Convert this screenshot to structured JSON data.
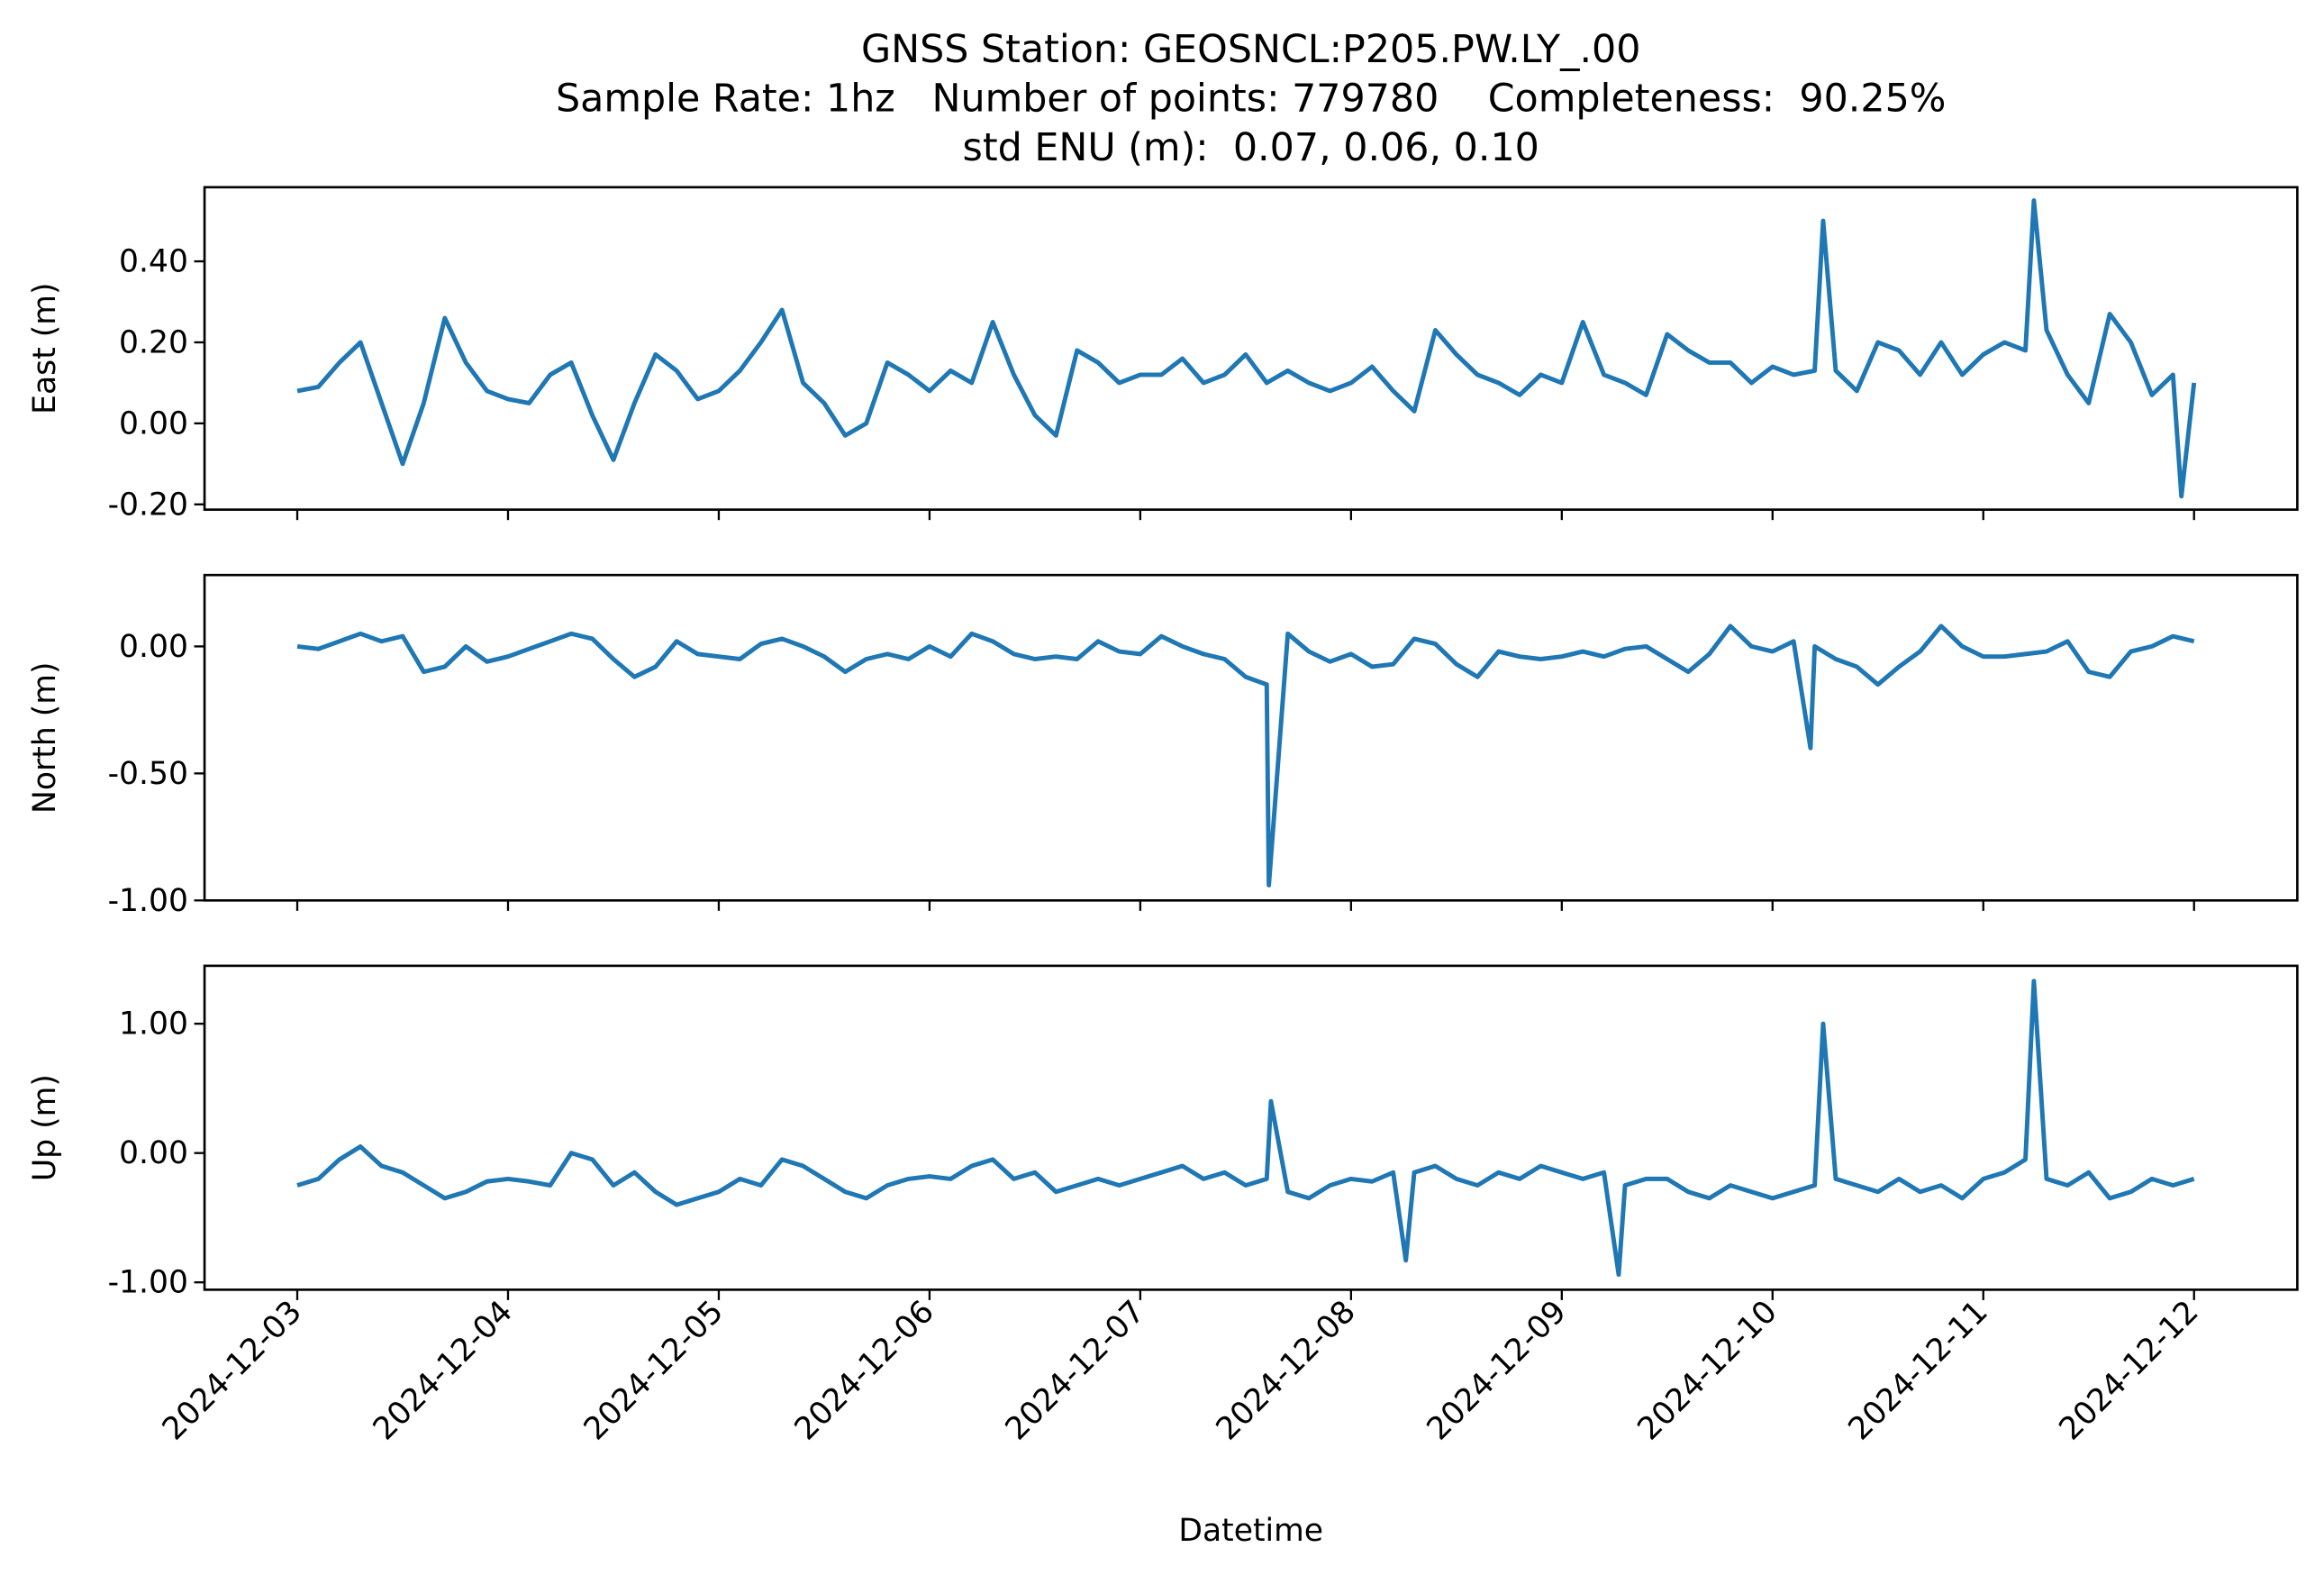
{
  "chart_data": [
    {
      "type": "line",
      "title": [
        "GNSS Station: GEOSNCL:P205.PW.LY_.00",
        "Sample Rate: 1hz   Number of points: 779780    Completeness:  90.25%",
        "std ENU (m):  0.07, 0.06, 0.10"
      ],
      "ylabel": "East (m)",
      "color": "#1f77b4",
      "x": [
        0,
        0.1,
        0.2,
        0.3,
        0.4,
        0.5,
        0.6,
        0.7,
        0.8,
        0.9,
        1,
        1.1,
        1.2,
        1.3,
        1.4,
        1.5,
        1.6,
        1.7,
        1.8,
        1.9,
        2,
        2.1,
        2.2,
        2.3,
        2.4,
        2.5,
        2.6,
        2.7,
        2.8,
        2.9,
        3,
        3.1,
        3.2,
        3.3,
        3.4,
        3.5,
        3.6,
        3.7,
        3.8,
        3.9,
        4,
        4.1,
        4.2,
        4.3,
        4.4,
        4.5,
        4.6,
        4.7,
        4.8,
        4.9,
        5,
        5.1,
        5.2,
        5.3,
        5.4,
        5.5,
        5.6,
        5.7,
        5.8,
        5.9,
        6,
        6.1,
        6.2,
        6.3,
        6.4,
        6.5,
        6.6,
        6.7,
        6.8,
        6.9,
        7,
        7.1,
        7.2,
        7.24,
        7.3,
        7.4,
        7.5,
        7.6,
        7.7,
        7.8,
        7.9,
        8,
        8.1,
        8.2,
        8.24,
        8.3,
        8.4,
        8.5,
        8.6,
        8.7,
        8.8,
        8.9,
        8.94,
        9
      ],
      "values": [
        0.08,
        0.09,
        0.15,
        0.2,
        0.05,
        -0.1,
        0.05,
        0.26,
        0.15,
        0.08,
        0.06,
        0.05,
        0.12,
        0.15,
        0.02,
        -0.09,
        0.05,
        0.17,
        0.13,
        0.06,
        0.08,
        0.13,
        0.2,
        0.28,
        0.1,
        0.05,
        -0.03,
        0.0,
        0.15,
        0.12,
        0.08,
        0.13,
        0.1,
        0.25,
        0.12,
        0.02,
        -0.03,
        0.18,
        0.15,
        0.1,
        0.12,
        0.12,
        0.16,
        0.1,
        0.12,
        0.17,
        0.1,
        0.13,
        0.1,
        0.08,
        0.1,
        0.14,
        0.08,
        0.03,
        0.23,
        0.17,
        0.12,
        0.1,
        0.07,
        0.12,
        0.1,
        0.25,
        0.12,
        0.1,
        0.07,
        0.22,
        0.18,
        0.15,
        0.15,
        0.1,
        0.14,
        0.12,
        0.13,
        0.5,
        0.13,
        0.08,
        0.2,
        0.18,
        0.12,
        0.2,
        0.12,
        0.17,
        0.2,
        0.18,
        0.55,
        0.23,
        0.12,
        0.05,
        0.27,
        0.2,
        0.07,
        0.12,
        -0.18,
        0.1
      ],
      "xlim": [
        -0.44,
        9.49
      ],
      "xticks": [
        0,
        1,
        2,
        3,
        4,
        5,
        6,
        7,
        8,
        9
      ],
      "ylim": [
        -0.213,
        0.583
      ],
      "yticks": [
        {
          "value": 0.4,
          "label": "0.40"
        },
        {
          "value": 0.2,
          "label": "0.20"
        },
        {
          "value": 0,
          "label": "0.00"
        },
        {
          "value": -0.2,
          "label": "-0.20"
        }
      ]
    },
    {
      "type": "line",
      "ylabel": "North (m)",
      "color": "#1f77b4",
      "x": [
        0,
        0.1,
        0.2,
        0.3,
        0.4,
        0.5,
        0.6,
        0.7,
        0.8,
        0.9,
        1,
        1.1,
        1.2,
        1.3,
        1.4,
        1.5,
        1.6,
        1.7,
        1.8,
        1.9,
        2,
        2.1,
        2.2,
        2.3,
        2.4,
        2.5,
        2.6,
        2.7,
        2.8,
        2.9,
        3,
        3.1,
        3.2,
        3.3,
        3.4,
        3.5,
        3.6,
        3.7,
        3.8,
        3.9,
        4,
        4.1,
        4.2,
        4.3,
        4.4,
        4.5,
        4.6,
        4.61,
        4.7,
        4.8,
        4.9,
        5,
        5.1,
        5.2,
        5.3,
        5.4,
        5.5,
        5.6,
        5.7,
        5.8,
        5.9,
        6,
        6.1,
        6.2,
        6.3,
        6.4,
        6.5,
        6.6,
        6.7,
        6.8,
        6.9,
        7,
        7.1,
        7.18,
        7.2,
        7.3,
        7.4,
        7.5,
        7.6,
        7.7,
        7.8,
        7.9,
        8,
        8.1,
        8.2,
        8.3,
        8.4,
        8.5,
        8.6,
        8.7,
        8.8,
        8.9,
        9
      ],
      "values": [
        0.0,
        -0.01,
        0.02,
        0.05,
        0.02,
        0.04,
        -0.1,
        -0.08,
        0.0,
        -0.06,
        -0.04,
        -0.01,
        0.02,
        0.05,
        0.03,
        -0.05,
        -0.12,
        -0.08,
        0.02,
        -0.03,
        -0.04,
        -0.05,
        0.01,
        0.03,
        0.0,
        -0.04,
        -0.1,
        -0.05,
        -0.03,
        -0.05,
        0.0,
        -0.04,
        0.05,
        0.02,
        -0.03,
        -0.05,
        -0.04,
        -0.05,
        0.02,
        -0.02,
        -0.03,
        0.04,
        0.0,
        -0.03,
        -0.05,
        -0.12,
        -0.15,
        -0.94,
        0.05,
        -0.02,
        -0.06,
        -0.03,
        -0.08,
        -0.07,
        0.03,
        0.01,
        -0.07,
        -0.12,
        -0.02,
        -0.04,
        -0.05,
        -0.04,
        -0.02,
        -0.04,
        -0.01,
        0.0,
        -0.05,
        -0.1,
        -0.03,
        0.08,
        0.0,
        -0.02,
        0.02,
        -0.4,
        0.0,
        -0.05,
        -0.08,
        -0.15,
        -0.08,
        -0.02,
        0.08,
        0.0,
        -0.04,
        -0.04,
        -0.03,
        -0.02,
        0.02,
        -0.1,
        -0.12,
        -0.02,
        0.0,
        0.04,
        0.02
      ],
      "xlim": [
        -0.44,
        9.49
      ],
      "xticks": [
        0,
        1,
        2,
        3,
        4,
        5,
        6,
        7,
        8,
        9
      ],
      "ylim": [
        -1.0,
        0.281
      ],
      "yticks": [
        {
          "value": 0,
          "label": "0.00"
        },
        {
          "value": -0.5,
          "label": "-0.50"
        },
        {
          "value": -1,
          "label": "-1.00"
        }
      ]
    },
    {
      "type": "line",
      "ylabel": "Up (m)",
      "xlabel": "Datetime",
      "color": "#1f77b4",
      "x": [
        0,
        0.1,
        0.2,
        0.3,
        0.4,
        0.5,
        0.6,
        0.7,
        0.8,
        0.9,
        1,
        1.1,
        1.2,
        1.3,
        1.4,
        1.5,
        1.6,
        1.7,
        1.8,
        1.9,
        2,
        2.1,
        2.2,
        2.3,
        2.4,
        2.5,
        2.6,
        2.7,
        2.8,
        2.9,
        3,
        3.1,
        3.2,
        3.3,
        3.4,
        3.5,
        3.6,
        3.7,
        3.8,
        3.9,
        4,
        4.1,
        4.2,
        4.3,
        4.4,
        4.5,
        4.6,
        4.62,
        4.7,
        4.8,
        4.9,
        5,
        5.1,
        5.2,
        5.26,
        5.3,
        5.4,
        5.5,
        5.6,
        5.7,
        5.8,
        5.9,
        6,
        6.1,
        6.2,
        6.27,
        6.3,
        6.4,
        6.5,
        6.6,
        6.7,
        6.8,
        6.9,
        7,
        7.1,
        7.2,
        7.24,
        7.3,
        7.4,
        7.5,
        7.6,
        7.7,
        7.8,
        7.9,
        8,
        8.1,
        8.2,
        8.24,
        8.3,
        8.4,
        8.5,
        8.6,
        8.7,
        8.8,
        8.9,
        9
      ],
      "values": [
        -0.25,
        -0.2,
        -0.05,
        0.05,
        -0.1,
        -0.15,
        -0.25,
        -0.35,
        -0.3,
        -0.22,
        -0.2,
        -0.22,
        -0.25,
        0.0,
        -0.05,
        -0.25,
        -0.15,
        -0.3,
        -0.4,
        -0.35,
        -0.3,
        -0.2,
        -0.25,
        -0.05,
        -0.1,
        -0.2,
        -0.3,
        -0.35,
        -0.25,
        -0.2,
        -0.18,
        -0.2,
        -0.1,
        -0.05,
        -0.2,
        -0.15,
        -0.3,
        -0.25,
        -0.2,
        -0.25,
        -0.2,
        -0.15,
        -0.1,
        -0.2,
        -0.15,
        -0.25,
        -0.2,
        0.4,
        -0.3,
        -0.35,
        -0.25,
        -0.2,
        -0.22,
        -0.15,
        -0.83,
        -0.15,
        -0.1,
        -0.2,
        -0.25,
        -0.15,
        -0.2,
        -0.1,
        -0.15,
        -0.2,
        -0.15,
        -0.94,
        -0.25,
        -0.2,
        -0.2,
        -0.3,
        -0.35,
        -0.25,
        -0.3,
        -0.35,
        -0.3,
        -0.25,
        1.0,
        -0.2,
        -0.25,
        -0.3,
        -0.2,
        -0.3,
        -0.25,
        -0.35,
        -0.2,
        -0.15,
        -0.05,
        1.33,
        -0.2,
        -0.25,
        -0.15,
        -0.35,
        -0.3,
        -0.2,
        -0.25,
        -0.2
      ],
      "xlim": [
        -0.44,
        9.49
      ],
      "xticks": [
        {
          "value": 0,
          "label": "2024-12-03"
        },
        {
          "value": 1,
          "label": "2024-12-04"
        },
        {
          "value": 2,
          "label": "2024-12-05"
        },
        {
          "value": 3,
          "label": "2024-12-06"
        },
        {
          "value": 4,
          "label": "2024-12-07"
        },
        {
          "value": 5,
          "label": "2024-12-08"
        },
        {
          "value": 6,
          "label": "2024-12-09"
        },
        {
          "value": 7,
          "label": "2024-12-10"
        },
        {
          "value": 8,
          "label": "2024-12-11"
        },
        {
          "value": 9,
          "label": "2024-12-12"
        }
      ],
      "ylim": [
        -1.057,
        1.448
      ],
      "yticks": [
        {
          "value": 1,
          "label": "1.00"
        },
        {
          "value": 0,
          "label": "0.00"
        },
        {
          "value": -1,
          "label": "-1.00"
        }
      ]
    }
  ]
}
